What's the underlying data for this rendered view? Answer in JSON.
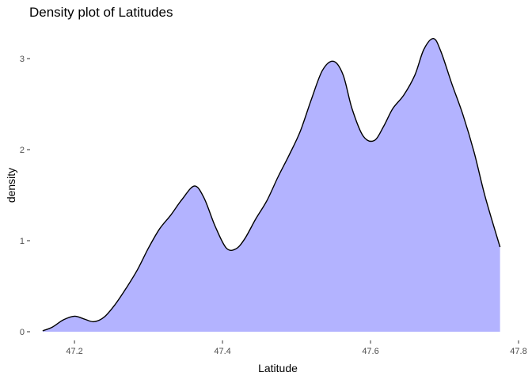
{
  "chart_data": {
    "type": "area",
    "title": "Density plot of Latitudes",
    "xlabel": "Latitude",
    "ylabel": "density",
    "xlim": [
      47.14,
      47.8
    ],
    "ylim": [
      0,
      3.35
    ],
    "x_ticks": [
      47.2,
      47.4,
      47.6,
      47.8
    ],
    "x_tick_labels": [
      "47.2",
      "47.4",
      "47.6",
      "47.8"
    ],
    "y_ticks": [
      0,
      1,
      2,
      3
    ],
    "y_tick_labels": [
      "0",
      "1",
      "2",
      "3"
    ],
    "grid": false,
    "fill_color": "#b3b3ff",
    "line_color": "#000000",
    "series": [
      {
        "name": "density",
        "x": [
          47.157,
          47.17,
          47.185,
          47.2,
          47.213,
          47.226,
          47.24,
          47.255,
          47.27,
          47.285,
          47.3,
          47.315,
          47.33,
          47.345,
          47.362,
          47.375,
          47.39,
          47.405,
          47.418,
          47.43,
          47.445,
          47.46,
          47.475,
          47.49,
          47.505,
          47.52,
          47.535,
          47.55,
          47.563,
          47.575,
          47.59,
          47.605,
          47.618,
          47.63,
          47.645,
          47.66,
          47.672,
          47.685,
          47.695,
          47.71,
          47.725,
          47.74,
          47.755,
          47.775
        ],
        "y": [
          0.01,
          0.05,
          0.13,
          0.17,
          0.14,
          0.11,
          0.16,
          0.3,
          0.48,
          0.68,
          0.92,
          1.13,
          1.28,
          1.45,
          1.6,
          1.47,
          1.16,
          0.92,
          0.91,
          1.02,
          1.24,
          1.44,
          1.7,
          1.94,
          2.2,
          2.55,
          2.87,
          2.97,
          2.82,
          2.45,
          2.15,
          2.1,
          2.26,
          2.45,
          2.6,
          2.82,
          3.1,
          3.22,
          3.08,
          2.72,
          2.38,
          1.97,
          1.48,
          0.93
        ]
      }
    ]
  }
}
